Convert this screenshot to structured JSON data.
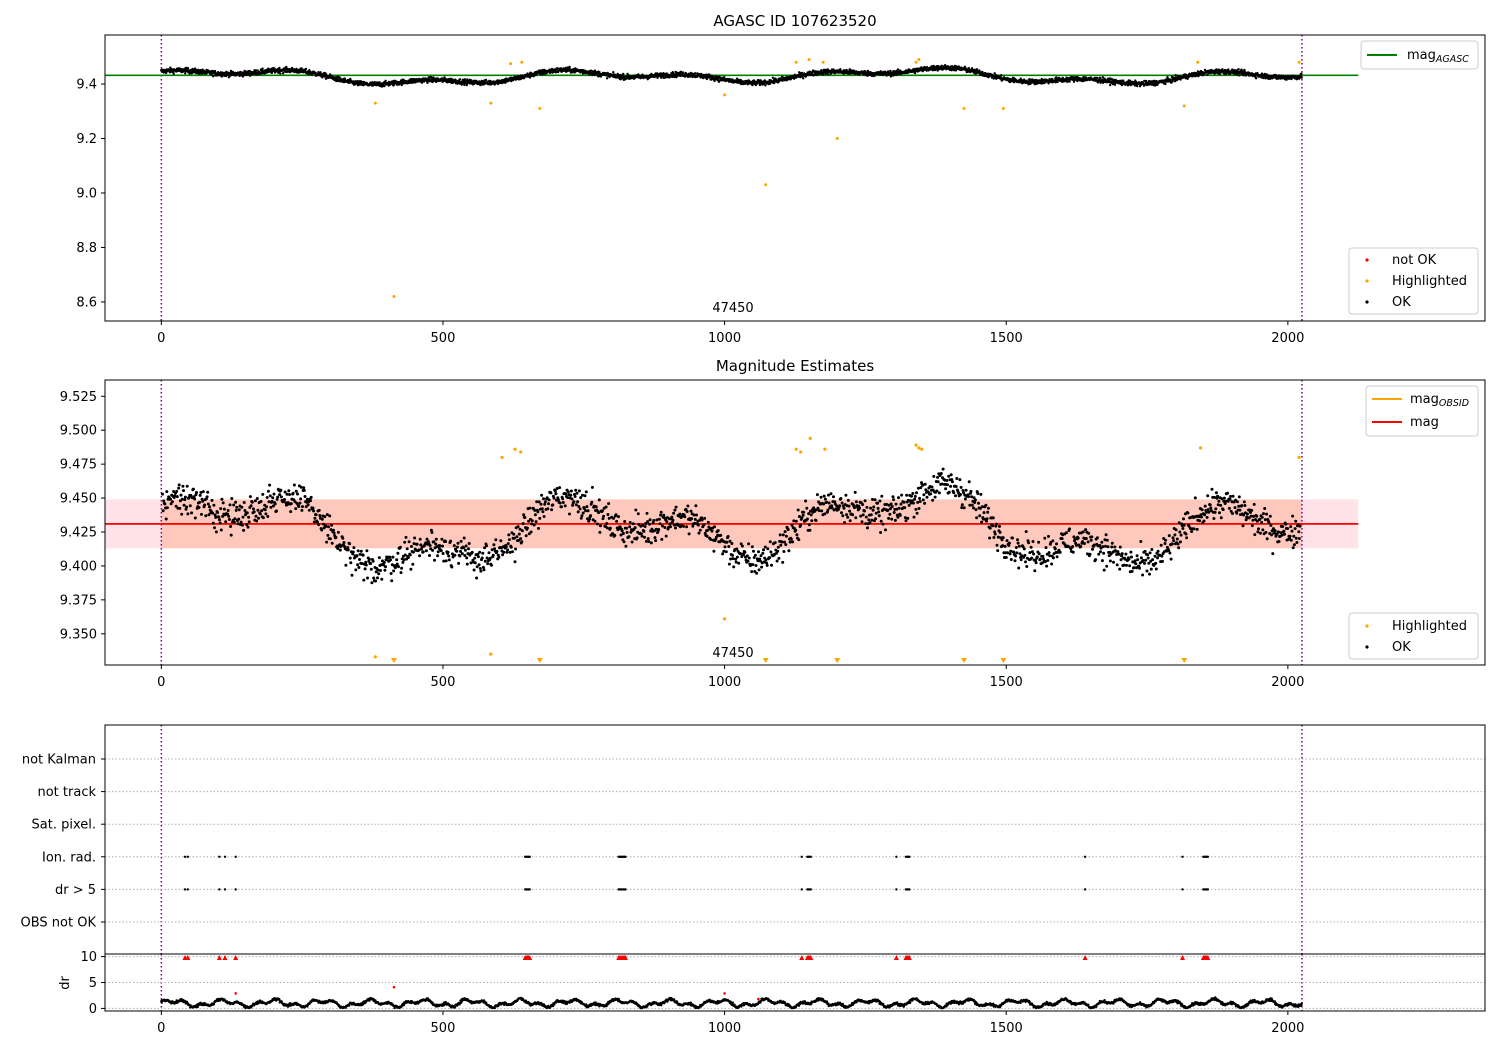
{
  "colors": {
    "agasc_line": "#008000",
    "obsid_line": "#ffa500",
    "mag_line": "#ff0000",
    "mag_band": "#ffc0cb",
    "obsid_band": "#ffa07a",
    "ok": "#000000",
    "highlighted": "#ffa500",
    "not_ok": "#ff0000",
    "obs_boundary": "#800080",
    "flag_grid": "#b0b0b0"
  },
  "chart_data": [
    {
      "type": "scatter",
      "title": "AGASC ID 107623520",
      "xlabel": "",
      "ylabel": "",
      "xlim": [
        -100,
        2350
      ],
      "ylim": [
        8.53,
        9.58
      ],
      "xticks": [
        0,
        500,
        1000,
        1500,
        2000
      ],
      "yticks": [
        8.6,
        8.8,
        9.0,
        9.2,
        9.4
      ],
      "ytick_labels": [
        "8.6",
        "8.8",
        "9.0",
        "9.2",
        "9.4"
      ],
      "obs_boundaries": [
        0,
        2025
      ],
      "obsid_label": {
        "text": "47450",
        "x": 1012
      },
      "reference_line": {
        "name": "mag_AGASC",
        "label_main": "mag",
        "label_sub": "AGASC",
        "y": 9.432,
        "x": [
          -100,
          2125
        ]
      },
      "series": [
        {
          "name": "OK",
          "color": "#000000",
          "description": "dense band",
          "x_range": [
            0,
            2025
          ],
          "y_center": 9.43
        },
        {
          "name": "Highlighted",
          "color": "#ffa500",
          "points": [
            [
              380,
              9.33
            ],
            [
              413,
              8.62
            ],
            [
              585,
              9.33
            ],
            [
              672,
              9.31
            ],
            [
              1000,
              9.36
            ],
            [
              1073,
              9.03
            ],
            [
              1200,
              9.2
            ],
            [
              1425,
              9.31
            ],
            [
              1495,
              9.31
            ],
            [
              1816,
              9.32
            ],
            [
              620,
              9.475
            ],
            [
              640,
              9.48
            ],
            [
              1127,
              9.48
            ],
            [
              1150,
              9.49
            ],
            [
              1175,
              9.48
            ],
            [
              1340,
              9.48
            ],
            [
              1345,
              9.49
            ],
            [
              1840,
              9.48
            ],
            [
              2020,
              9.48
            ]
          ]
        }
      ],
      "legends": [
        {
          "placement": "top-right",
          "entries": [
            {
              "label_main": "mag",
              "label_sub": "AGASC",
              "kind": "line",
              "color": "#008000"
            }
          ]
        },
        {
          "placement": "bottom-right",
          "entries": [
            {
              "label": "not OK",
              "kind": "dot",
              "color": "#ff0000"
            },
            {
              "label": "Highlighted",
              "kind": "dot",
              "color": "#ffa500"
            },
            {
              "label": "OK",
              "kind": "dot",
              "color": "#000000"
            }
          ]
        }
      ]
    },
    {
      "type": "scatter",
      "title": "Magnitude Estimates",
      "xlabel": "",
      "ylabel": "",
      "xlim": [
        -100,
        2350
      ],
      "ylim": [
        9.327,
        9.537
      ],
      "xticks": [
        0,
        500,
        1000,
        1500,
        2000
      ],
      "yticks": [
        9.35,
        9.375,
        9.4,
        9.425,
        9.45,
        9.475,
        9.5,
        9.525
      ],
      "ytick_labels": [
        "9.350",
        "9.375",
        "9.400",
        "9.425",
        "9.450",
        "9.475",
        "9.500",
        "9.525"
      ],
      "obs_boundaries": [
        0,
        2025
      ],
      "obsid_label": {
        "text": "47450",
        "x": 1012
      },
      "mag": {
        "name": "mag",
        "y": 9.431,
        "band": [
          9.413,
          9.449
        ],
        "x": [
          -100,
          2125
        ]
      },
      "mag_obsid": {
        "label_main": "mag",
        "label_sub": "OBSID",
        "y": 9.431,
        "band": [
          9.413,
          9.449
        ],
        "x": [
          0,
          2025
        ]
      },
      "series": [
        {
          "name": "OK",
          "color": "#000000",
          "description": "scattered points",
          "x_range": [
            0,
            2025
          ],
          "y_center": 9.43
        },
        {
          "name": "Highlighted",
          "color": "#ffa500",
          "points": [
            [
              380,
              9.333
            ],
            [
              585,
              9.335
            ],
            [
              1000,
              9.361
            ],
            [
              605,
              9.48
            ],
            [
              628,
              9.486
            ],
            [
              638,
              9.484
            ],
            [
              1127,
              9.486
            ],
            [
              1135,
              9.484
            ],
            [
              1152,
              9.494
            ],
            [
              1178,
              9.486
            ],
            [
              1340,
              9.489
            ],
            [
              1345,
              9.487
            ],
            [
              1350,
              9.486
            ],
            [
              1845,
              9.487
            ],
            [
              2020,
              9.48
            ]
          ]
        },
        {
          "name": "Highlighted below range",
          "color": "#ffa500",
          "marker": "triangle-down",
          "x": [
            413,
            672,
            1073,
            1200,
            1425,
            1495,
            1816
          ]
        }
      ],
      "legends": [
        {
          "placement": "top-right",
          "entries": [
            {
              "label_main": "mag",
              "label_sub": "OBSID",
              "kind": "line",
              "color": "#ffa500"
            },
            {
              "label": "mag",
              "kind": "line",
              "color": "#ff0000"
            }
          ]
        },
        {
          "placement": "bottom-right",
          "entries": [
            {
              "label": "Highlighted",
              "kind": "dot",
              "color": "#ffa500"
            },
            {
              "label": "OK",
              "kind": "dot",
              "color": "#000000"
            }
          ]
        }
      ]
    },
    {
      "type": "scatter",
      "title": "",
      "xlabel": "",
      "ylabel": "",
      "xlim": [
        -100,
        2350
      ],
      "xticks": [
        0,
        500,
        1000,
        1500,
        2000
      ],
      "obs_boundaries": [
        0,
        2025
      ],
      "flag_rows": [
        "not Kalman",
        "not track",
        "Sat. pixel.",
        "Ion. rad.",
        "dr > 5",
        "OBS not OK"
      ],
      "flag_events": {
        "Ion. rad.": [
          42,
          47,
          103,
          113,
          132,
          646,
          648,
          650,
          652,
          654,
          812,
          814,
          816,
          818,
          820,
          822,
          824,
          1137,
          1147,
          1149,
          1151,
          1153,
          1305,
          1322,
          1324,
          1326,
          1328,
          1640,
          1813,
          1850,
          1852,
          1854,
          1856,
          1858
        ],
        "dr > 5": [
          42,
          47,
          103,
          113,
          132,
          646,
          648,
          650,
          652,
          654,
          812,
          814,
          816,
          818,
          820,
          822,
          824,
          1137,
          1147,
          1149,
          1151,
          1153,
          1305,
          1322,
          1324,
          1326,
          1328,
          1640,
          1813,
          1850,
          1852,
          1854,
          1856,
          1858
        ]
      }
    },
    {
      "type": "scatter",
      "title": "",
      "xlabel": "",
      "ylabel": "dr",
      "xlim": [
        -100,
        2350
      ],
      "ylim": [
        -0.5,
        10.5
      ],
      "xticks": [
        0,
        500,
        1000,
        1500,
        2000
      ],
      "yticks": [
        0,
        5,
        10
      ],
      "ytick_labels": [
        "0",
        "5",
        "10"
      ],
      "obs_boundaries": [
        0,
        2025
      ],
      "series": [
        {
          "name": "OK",
          "color": "#000000",
          "description": "dr values mostly between 0 and 2.5",
          "y_range": [
            0,
            2.5
          ]
        },
        {
          "name": "not OK",
          "color": "#ff0000",
          "points": [
            [
              132,
              2.9
            ],
            [
              413,
              4.1
            ],
            [
              1000,
              2.9
            ],
            [
              1060,
              1.8
            ]
          ]
        },
        {
          "name": "not OK above range",
          "color": "#ff0000",
          "marker": "triangle-up",
          "x": [
            42,
            47,
            103,
            113,
            132,
            646,
            648,
            650,
            652,
            654,
            812,
            814,
            816,
            818,
            820,
            822,
            824,
            1137,
            1147,
            1149,
            1151,
            1153,
            1305,
            1322,
            1324,
            1326,
            1328,
            1640,
            1813,
            1850,
            1852,
            1854,
            1856,
            1858
          ]
        }
      ]
    }
  ]
}
